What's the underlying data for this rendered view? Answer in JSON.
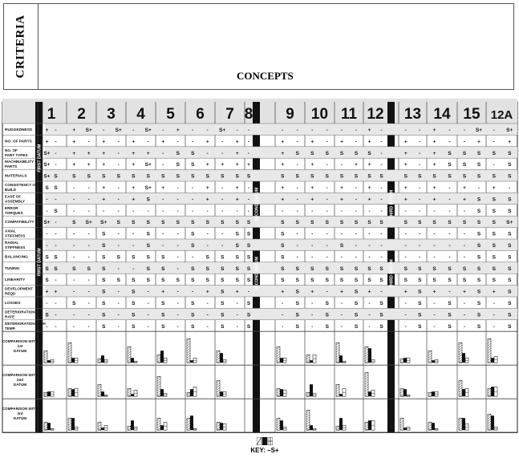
{
  "header": {
    "criteria_label": "CRITERIA",
    "concepts_label": "CONCEPTS"
  },
  "concepts": [
    "1",
    "2",
    "3",
    "4",
    "5",
    "6",
    "7",
    "8",
    "9",
    "10",
    "11",
    "12",
    "13",
    "14",
    "15",
    "12A"
  ],
  "datums": {
    "first": "FIRST DATUM",
    "second": "SECOND DATUM",
    "third": "THIRD DATUM"
  },
  "criteria": [
    {
      "label": "RUGGEDNESS",
      "cells": "+|-|+|S+|-|S+|-|S+|-|+|-|-|S+|-|-|-|-|-|-|-|-|+|-|-|-|+|-|-|S+|-|S+"
    },
    {
      "label": "NO. OF PARTS",
      "cells": "+|-|+|-|+|-|+|-|+|-|-|+|-|+|-|+|-|+|-|+|-|+|-|+|-|+|-|-|+|-|+"
    },
    {
      "label": "NO. OF PART TYPES",
      "cells": "S+|-|+|+|+|-|+|+|-|S|S|-|-|+|-|+|S|S|S|S|S|S|-|+|-|+|S|S|S|S|S"
    },
    {
      "label": "MACHINABILITY OF PARTS",
      "cells": "S+|-|+|+|+|-|+|S+|-|S|S|+|+|+|+|+|-|+|-|-|+|+|-|+|-|+|S|S|S|-|S"
    },
    {
      "label": "MATERIALS",
      "cells": "S+|S|S|S|S|S|S|S|S|S|S|S|S|S|S|S|S|S|S|S|S|S|S|S|S|S|S|S|S|S|S"
    },
    {
      "label": "CONSISTENCY OF BUILD",
      "cells": "S|S|-|-|+|-|+|S+|+|-|-|+|-|+|-|+|-|+|-|+|-|+|-|+|-|+|-|+|-|+|-"
    },
    {
      "label": "EASE OF ASSEMBLY",
      "cells": "-|-|-|-|+|-|+|S|-|-|-|+|-|+|-|+|-|+|-|+|-|+|-|+|-|+|-|+|S|S|S"
    },
    {
      "label": "ERROR TORQUES",
      "cells": "-|S|-|-|-|-|-|-|-|-|-|-|-|-|-|-|-|-|-|-|-|-|-|-|-|-|-|-|S|S|S"
    },
    {
      "label": "COMPATIBILITY",
      "cells": "S+|-|S|S+|S+|S|S|S|S|S|S|S|S|S|S|S|S|S|S|S|S|S|S|S|S|S|S|S|S|S|S+"
    },
    {
      "label": "AXIAL STIFFNESS",
      "cells": "-|-|-|-|S|-|-|S|-|-|S|-|-|S|S|S|-|-|-|-|-|-|-|-|-|-|-|-|S|S|S"
    },
    {
      "label": "RADIAL STIFFNESS",
      "cells": "-|-|-|-|S|-|-|S|-|-|S|-|-|S|S|S|-|-|-|S|-|-|-|-|-|-|-|-|S|S|S"
    },
    {
      "label": "BALANCING",
      "cells": "S|S|-|-|S|S|S|S|S|-|-|S|S|S|S|S|-|-|-|-|-|-|-|-|-|-|-|-|S|S|S"
    },
    {
      "label": "TUNING",
      "cells": "S|S|S|S|S|-|-|S|S|-|S|S|S|S|S|S|S|S|S|S|S|S|S|S|S|S|S|S|S|S|S"
    },
    {
      "label": "LINEARITY",
      "cells": "S|-|-|-|S|S|S|S|S|S|S|S|S|S|S|S|S|S|S|S|S|S|S|S|S|S|S|S|S|S|S"
    },
    {
      "label": "DEVELOPMENT REQD",
      "cells": "+|+|-|-|S|-|S|-|+|-|-|+|S|+|-|+|S|+|-|+|S|+|-|+|S|+|-|+|S|+|S"
    },
    {
      "label": "LOSSES",
      "cells": "-|-|S|-|S|-|S|-|S|-|S|-|S|-|S|-|S|-|S|-|S|-|S|-|S|-|S|-|S|-|S"
    },
    {
      "label": "DETERIORATION RATE",
      "cells": "S|-|-|-|S|-|S|-|S|-|S|-|S|-|S|-|S|-|S|-|S|-|S|-|S|-|S|-|S|-|S"
    },
    {
      "label": "DETERIORATION WITH TEMP.",
      "cells": "-|-|-|-|S|-|S|-|S|-|S|-|S|-|S|-|S|-|S|-|S|-|S|-|S|-|S|-|S|-|S"
    }
  ],
  "comparisons": [
    {
      "label": "COMPARISON WITH 1st DATUM"
    },
    {
      "label": "COMPARISON WITH 2nd DATUM"
    },
    {
      "label": "COMPARISON WITH 3rd DATUM"
    }
  ],
  "key": {
    "text": "KEY: –S+"
  }
}
